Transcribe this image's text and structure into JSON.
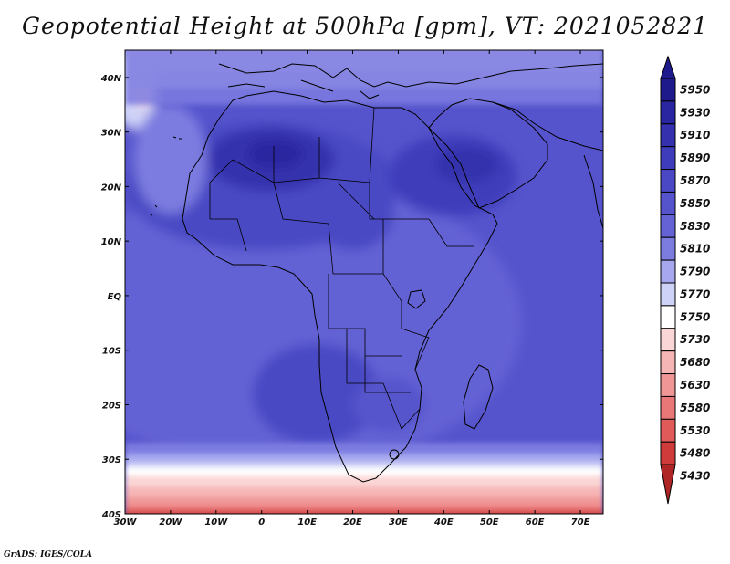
{
  "title": "Geopotential Height at 500hPa [gpm], VT: 2021052821",
  "credit": "GrADS: IGES/COLA",
  "map": {
    "lon_range": [
      -30,
      75
    ],
    "lat_range": [
      -40,
      45
    ],
    "x_ticks": [
      {
        "lon": -30,
        "label": "30W"
      },
      {
        "lon": -20,
        "label": "20W"
      },
      {
        "lon": -10,
        "label": "10W"
      },
      {
        "lon": 0,
        "label": "0"
      },
      {
        "lon": 10,
        "label": "10E"
      },
      {
        "lon": 20,
        "label": "20E"
      },
      {
        "lon": 30,
        "label": "30E"
      },
      {
        "lon": 40,
        "label": "40E"
      },
      {
        "lon": 50,
        "label": "50E"
      },
      {
        "lon": 60,
        "label": "60E"
      },
      {
        "lon": 70,
        "label": "70E"
      }
    ],
    "y_ticks": [
      {
        "lat": 40,
        "label": "40N"
      },
      {
        "lat": 30,
        "label": "30N"
      },
      {
        "lat": 20,
        "label": "20N"
      },
      {
        "lat": 10,
        "label": "10N"
      },
      {
        "lat": 0,
        "label": "EQ"
      },
      {
        "lat": -10,
        "label": "10S"
      },
      {
        "lat": -20,
        "label": "20S"
      },
      {
        "lat": -30,
        "label": "30S"
      },
      {
        "lat": -40,
        "label": "40S"
      }
    ]
  },
  "colorbar": {
    "labels": [
      "5950",
      "5930",
      "5910",
      "5890",
      "5870",
      "5850",
      "5830",
      "5810",
      "5790",
      "5770",
      "5750",
      "5730",
      "5680",
      "5630",
      "5580",
      "5530",
      "5480",
      "5430"
    ],
    "colors": [
      "#1f1a8c",
      "#2a25a0",
      "#3530ad",
      "#3f3cbb",
      "#4a48c4",
      "#5654cc",
      "#6462d4",
      "#7c7be0",
      "#a6a7ee",
      "#cfd2f7",
      "#ffffff",
      "#fbd6d6",
      "#f6b5b5",
      "#f09696",
      "#ea7777",
      "#e05a5a",
      "#cf3b3b",
      "#b02525"
    ]
  },
  "field": {
    "description_free": true,
    "bands_north": [
      {
        "lat": 44,
        "color": "#f6b5b5"
      },
      {
        "lat": 41,
        "color": "#fbd6d6"
      },
      {
        "lat": 38,
        "color": "#cfd2f7"
      },
      {
        "lat": 35,
        "color": "#7c7be0"
      }
    ],
    "bands_south": [
      {
        "lat": -27,
        "color": "#7c7be0"
      },
      {
        "lat": -29,
        "color": "#a6a7ee"
      },
      {
        "lat": -30.5,
        "color": "#cfd2f7"
      },
      {
        "lat": -31.5,
        "color": "#ffffff"
      },
      {
        "lat": -33,
        "color": "#fbd6d6"
      },
      {
        "lat": -35,
        "color": "#f6b5b5"
      },
      {
        "lat": -37,
        "color": "#f09696"
      },
      {
        "lat": -38.5,
        "color": "#ea7777"
      },
      {
        "lat": -39.5,
        "color": "#cf3b3b"
      }
    ]
  }
}
